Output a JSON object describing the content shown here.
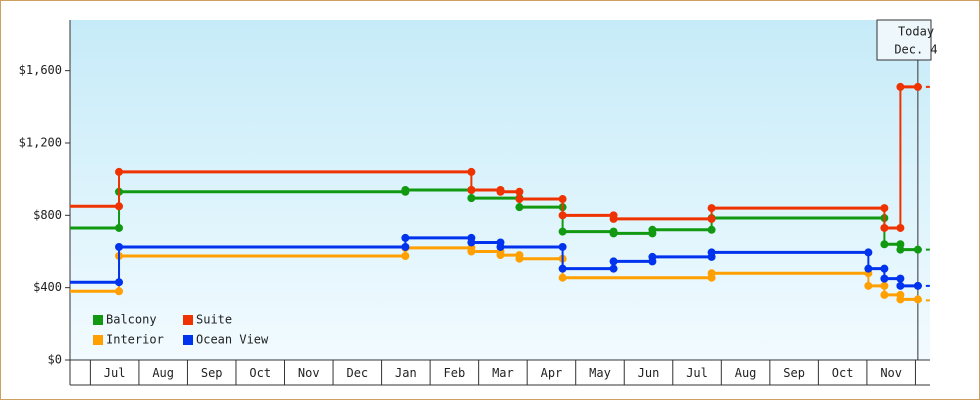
{
  "chart_data": {
    "type": "step",
    "ylim": [
      0,
      1880
    ],
    "yticks": [
      {
        "value": 0,
        "label": "$0"
      },
      {
        "value": 400,
        "label": "$400"
      },
      {
        "value": 800,
        "label": "$800"
      },
      {
        "value": 1200,
        "label": "$1,200"
      },
      {
        "value": 1600,
        "label": "$1,600"
      }
    ],
    "xlim": [
      -0.92,
      16.8
    ],
    "xticks": [
      {
        "value": 0,
        "label": "Jul"
      },
      {
        "value": 1,
        "label": "Aug"
      },
      {
        "value": 2,
        "label": "Sep"
      },
      {
        "value": 3,
        "label": "Oct"
      },
      {
        "value": 4,
        "label": "Nov"
      },
      {
        "value": 5,
        "label": "Dec"
      },
      {
        "value": 6,
        "label": "Jan"
      },
      {
        "value": 7,
        "label": "Feb"
      },
      {
        "value": 8,
        "label": "Mar"
      },
      {
        "value": 9,
        "label": "Apr"
      },
      {
        "value": 10,
        "label": "May"
      },
      {
        "value": 11,
        "label": "Jun"
      },
      {
        "value": 12,
        "label": "Jul"
      },
      {
        "value": 13,
        "label": "Aug"
      },
      {
        "value": 14,
        "label": "Sep"
      },
      {
        "value": 15,
        "label": "Oct"
      },
      {
        "value": 16,
        "label": "Nov"
      }
    ],
    "today": {
      "x": 16.55,
      "label": "Today",
      "date": "Dec. 4"
    },
    "legend": "lower-left",
    "series": [
      {
        "name": "Balcony",
        "color": "#119911",
        "x": [
          -0.92,
          0.09,
          5.99,
          7.35,
          8.34,
          9.23,
          10.28,
          11.08,
          12.3,
          15.86,
          16.19,
          16.55
        ],
        "values": [
          730,
          930,
          940,
          895,
          845,
          710,
          700,
          720,
          785,
          640,
          610,
          610
        ]
      },
      {
        "name": "Suite",
        "color": "#ee3300",
        "x": [
          -0.92,
          0.09,
          7.35,
          7.95,
          8.34,
          9.23,
          10.28,
          12.3,
          15.86,
          16.19,
          16.55
        ],
        "values": [
          850,
          1040,
          940,
          930,
          890,
          800,
          780,
          840,
          730,
          1510,
          1510
        ]
      },
      {
        "name": "Interior",
        "color": "#ffa000",
        "x": [
          -0.92,
          0.09,
          5.99,
          7.35,
          7.95,
          8.34,
          9.23,
          12.3,
          15.53,
          15.86,
          16.19,
          16.55
        ],
        "values": [
          380,
          575,
          620,
          600,
          580,
          560,
          455,
          480,
          410,
          360,
          335,
          330
        ]
      },
      {
        "name": "Ocean View",
        "color": "#0033ee",
        "x": [
          -0.92,
          0.09,
          5.99,
          7.35,
          7.95,
          9.23,
          10.28,
          11.08,
          12.3,
          15.53,
          15.86,
          16.19,
          16.55
        ],
        "values": [
          430,
          625,
          675,
          650,
          625,
          505,
          545,
          570,
          595,
          505,
          450,
          410,
          410
        ]
      }
    ]
  }
}
